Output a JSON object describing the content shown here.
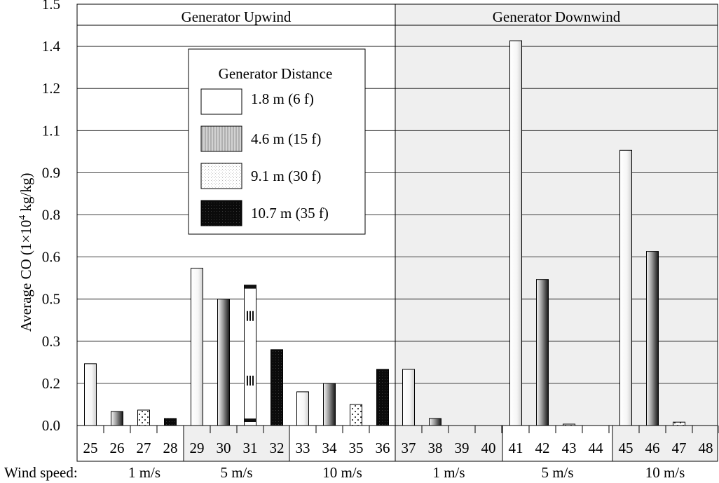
{
  "chart_data": {
    "type": "bar",
    "ylabel_prefix": "Average CO (1×10",
    "ylabel_exp": "4",
    "ylabel_suffix": " kg/kg)",
    "ylim": [
      0,
      1.5
    ],
    "yticks": [
      "0.0",
      "0.2",
      "0.3",
      "0.5",
      "0.6",
      "0.8",
      "0.9",
      "1.1",
      "1.2",
      "1.4",
      "1.5"
    ],
    "panels": [
      {
        "title": "Generator Upwind",
        "shaded": false
      },
      {
        "title": "Generator Downwind",
        "shaded": true
      }
    ],
    "legend": {
      "title": "Generator Distance",
      "placement": "top-center of upwind panel",
      "entries": [
        "1.8 m (6 f)",
        "4.6 m (15 f)",
        "9.1 m (30 f)",
        "10.7 m (35 f)"
      ]
    },
    "x_prefix": "Wind speed:",
    "wind_groups": [
      {
        "label": "1 m/s",
        "runs": [
          "25",
          "26",
          "27",
          "28"
        ],
        "shaded": false,
        "panel": 0
      },
      {
        "label": "5 m/s",
        "runs": [
          "29",
          "30",
          "31",
          "32"
        ],
        "shaded": true,
        "panel": 0
      },
      {
        "label": "10 m/s",
        "runs": [
          "33",
          "34",
          "35",
          "36"
        ],
        "shaded": false,
        "panel": 0
      },
      {
        "label": "1 m/s",
        "runs": [
          "37",
          "38",
          "39",
          "40"
        ],
        "shaded": true,
        "panel": 1
      },
      {
        "label": "5 m/s",
        "runs": [
          "41",
          "42",
          "43",
          "44"
        ],
        "shaded": false,
        "panel": 1
      },
      {
        "label": "10 m/s",
        "runs": [
          "45",
          "46",
          "47",
          "48"
        ],
        "shaded": true,
        "panel": 1
      }
    ],
    "bars": [
      {
        "run": "25",
        "distance": "1.8 m (6 f)",
        "value": 0.22
      },
      {
        "run": "26",
        "distance": "4.6 m (15 f)",
        "value": 0.05
      },
      {
        "run": "27",
        "distance": "9.1 m (30 f)",
        "value": 0.055
      },
      {
        "run": "28",
        "distance": "10.7 m (35 f)",
        "value": 0.025
      },
      {
        "run": "29",
        "distance": "1.8 m (6 f)",
        "value": 0.56
      },
      {
        "run": "30",
        "distance": "4.6 m (15 f)",
        "value": 0.45
      },
      {
        "run": "31",
        "distance": "9.1 m (30 f)",
        "value": 0.5
      },
      {
        "run": "32",
        "distance": "10.7 m (35 f)",
        "value": 0.27
      },
      {
        "run": "33",
        "distance": "1.8 m (6 f)",
        "value": 0.12
      },
      {
        "run": "34",
        "distance": "4.6 m (15 f)",
        "value": 0.15
      },
      {
        "run": "35",
        "distance": "9.1 m (30 f)",
        "value": 0.075
      },
      {
        "run": "36",
        "distance": "10.7 m (35 f)",
        "value": 0.2
      },
      {
        "run": "37",
        "distance": "1.8 m (6 f)",
        "value": 0.2
      },
      {
        "run": "38",
        "distance": "4.6 m (15 f)",
        "value": 0.025
      },
      {
        "run": "39",
        "distance": "9.1 m (30 f)",
        "value": 0.0
      },
      {
        "run": "40",
        "distance": "10.7 m (35 f)",
        "value": 0.0
      },
      {
        "run": "41",
        "distance": "1.8 m (6 f)",
        "value": 1.37
      },
      {
        "run": "42",
        "distance": "4.6 m (15 f)",
        "value": 0.52
      },
      {
        "run": "43",
        "distance": "9.1 m (30 f)",
        "value": 0.003
      },
      {
        "run": "44",
        "distance": "10.7 m (35 f)",
        "value": 0.0
      },
      {
        "run": "45",
        "distance": "1.8 m (6 f)",
        "value": 0.98
      },
      {
        "run": "46",
        "distance": "4.6 m (15 f)",
        "value": 0.62
      },
      {
        "run": "47",
        "distance": "9.1 m (30 f)",
        "value": 0.012
      },
      {
        "run": "48",
        "distance": "10.7 m (35 f)",
        "value": 0.0
      }
    ],
    "colors": {
      "shade": "#efefef",
      "run_label_muted": "#6e6e6e",
      "bar_light": "#ffffff",
      "bar_gray": "#bdbdbd",
      "bar_dark": "#111111"
    },
    "grid": true
  }
}
